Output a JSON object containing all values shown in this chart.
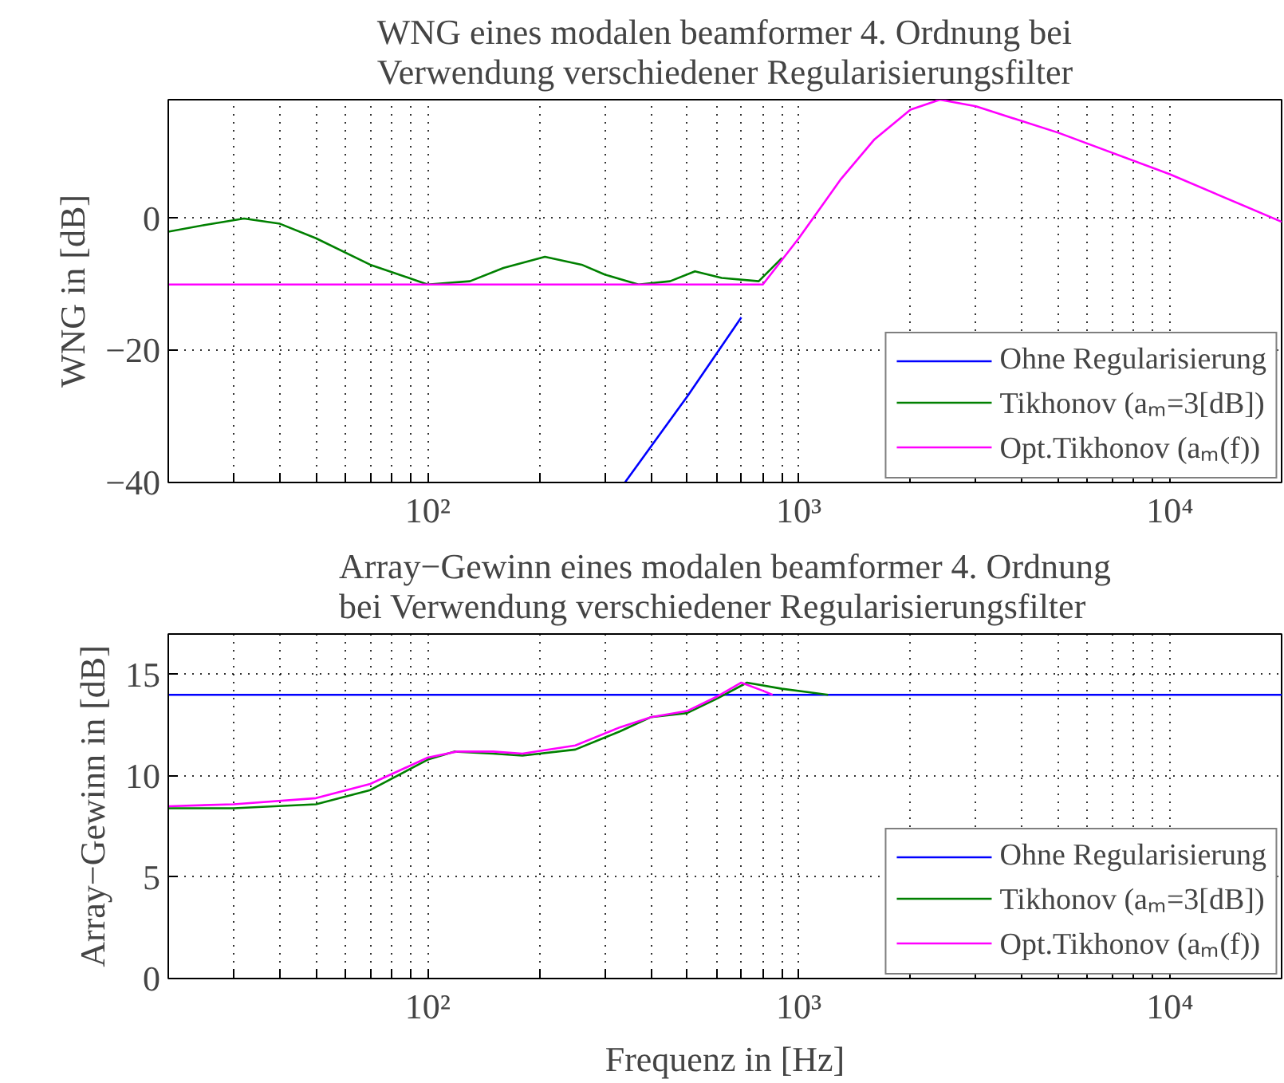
{
  "chart_data": [
    {
      "type": "line",
      "title": "WNG eines modalen beamformer 4. Ordnung bei\nVerwendung verschiedener Regularisierungsfilter",
      "ylabel": "WNG in [dB]",
      "log": "x",
      "grid": true,
      "legend": "bottom right",
      "tick_labels": "xy",
      "xlim": [
        20,
        20000
      ],
      "ylim": [
        -40,
        18
      ],
      "xticks": [
        {
          "value": 30,
          "label": null
        },
        {
          "value": 40,
          "label": null
        },
        {
          "value": 50,
          "label": null
        },
        {
          "value": 60,
          "label": null
        },
        {
          "value": 70,
          "label": null
        },
        {
          "value": 80,
          "label": null
        },
        {
          "value": 90,
          "label": null
        },
        {
          "value": 100,
          "label": "10²"
        },
        {
          "value": 200,
          "label": null
        },
        {
          "value": 300,
          "label": null
        },
        {
          "value": 400,
          "label": null
        },
        {
          "value": 500,
          "label": null
        },
        {
          "value": 600,
          "label": null
        },
        {
          "value": 700,
          "label": null
        },
        {
          "value": 800,
          "label": null
        },
        {
          "value": 900,
          "label": null
        },
        {
          "value": 1000,
          "label": "10³"
        },
        {
          "value": 2000,
          "label": null
        },
        {
          "value": 3000,
          "label": null
        },
        {
          "value": 4000,
          "label": null
        },
        {
          "value": 5000,
          "label": null
        },
        {
          "value": 6000,
          "label": null
        },
        {
          "value": 7000,
          "label": null
        },
        {
          "value": 8000,
          "label": null
        },
        {
          "value": 9000,
          "label": null
        },
        {
          "value": 10000,
          "label": "10⁴"
        }
      ],
      "yticks": [
        {
          "value": -40,
          "label": "−40"
        },
        {
          "value": -20,
          "label": "−20"
        },
        0
      ],
      "series": [
        {
          "name": "Ohne Regularisierung",
          "color": "#0000ff",
          "x": [
            340,
            500,
            700
          ],
          "values": [
            -40,
            -27,
            -15
          ]
        },
        {
          "name": "Tikhonov (aₘ=3[dB])",
          "color": "#008000",
          "x": [
            20,
            25,
            32,
            40,
            50,
            70,
            100,
            130,
            160,
            207,
            260,
            300,
            370,
            450,
            525,
            620,
            780,
            900
          ],
          "values": [
            -2,
            -1,
            0,
            -0.8,
            -3,
            -7,
            -10,
            -9.5,
            -7.5,
            -5.8,
            -7,
            -8.5,
            -10,
            -9.5,
            -8,
            -9,
            -9.5,
            -6
          ]
        },
        {
          "name": "Opt.Tikhonov (aₘ(f))",
          "color": "#ff00ff",
          "x": [
            20,
            100,
            300,
            800,
            1000,
            1300,
            1600,
            2000,
            2400,
            3000,
            5000,
            10000,
            20000
          ],
          "values": [
            -10,
            -10,
            -10,
            -10,
            -3,
            6,
            12,
            16.5,
            18,
            17,
            13,
            6.7,
            -0.5
          ]
        }
      ]
    },
    {
      "type": "line",
      "title": "Array−Gewinn eines modalen beamformer 4. Ordnung\nbei Verwendung verschiedener Regularisierungsfilter",
      "xlabel": "Frequenz in [Hz]",
      "ylabel": "Array−Gewinn in [dB]",
      "log": "x",
      "grid": true,
      "legend": "bottom right",
      "xlim": [
        20,
        20000
      ],
      "ylim": [
        0,
        17
      ],
      "xticks": [
        {
          "value": 30,
          "label": null
        },
        {
          "value": 40,
          "label": null
        },
        {
          "value": 50,
          "label": null
        },
        {
          "value": 60,
          "label": null
        },
        {
          "value": 70,
          "label": null
        },
        {
          "value": 80,
          "label": null
        },
        {
          "value": 90,
          "label": null
        },
        {
          "value": 100,
          "label": "10²"
        },
        {
          "value": 200,
          "label": null
        },
        {
          "value": 300,
          "label": null
        },
        {
          "value": 400,
          "label": null
        },
        {
          "value": 500,
          "label": null
        },
        {
          "value": 600,
          "label": null
        },
        {
          "value": 700,
          "label": null
        },
        {
          "value": 800,
          "label": null
        },
        {
          "value": 900,
          "label": null
        },
        {
          "value": 1000,
          "label": "10³"
        },
        {
          "value": 2000,
          "label": null
        },
        {
          "value": 3000,
          "label": null
        },
        {
          "value": 4000,
          "label": null
        },
        {
          "value": 5000,
          "label": null
        },
        {
          "value": 6000,
          "label": null
        },
        {
          "value": 7000,
          "label": null
        },
        {
          "value": 8000,
          "label": null
        },
        {
          "value": 9000,
          "label": null
        },
        {
          "value": 10000,
          "label": "10⁴"
        }
      ],
      "yticks": [
        0,
        5,
        10,
        15
      ],
      "series": [
        {
          "name": "Ohne Regularisierung",
          "color": "#0000ff",
          "x": [
            20,
            20000
          ],
          "values": [
            14,
            14
          ]
        },
        {
          "name": "Tikhonov (aₘ=3[dB])",
          "color": "#008000",
          "x": [
            20,
            30,
            50,
            70,
            100,
            118,
            150,
            180,
            250,
            330,
            400,
            500,
            600,
            725,
            900,
            1200
          ],
          "values": [
            8.4,
            8.4,
            8.6,
            9.3,
            10.8,
            11.2,
            11.1,
            11.0,
            11.3,
            12.2,
            12.9,
            13.1,
            13.8,
            14.6,
            14.3,
            14.0
          ]
        },
        {
          "name": "Opt.Tikhonov (aₘ(f))",
          "color": "#ff00ff",
          "x": [
            20,
            30,
            50,
            70,
            100,
            120,
            150,
            180,
            250,
            330,
            400,
            500,
            600,
            700,
            800,
            850
          ],
          "values": [
            8.5,
            8.6,
            8.9,
            9.6,
            10.9,
            11.2,
            11.2,
            11.1,
            11.5,
            12.4,
            12.9,
            13.2,
            13.9,
            14.6,
            14.2,
            14.0
          ]
        }
      ]
    }
  ]
}
